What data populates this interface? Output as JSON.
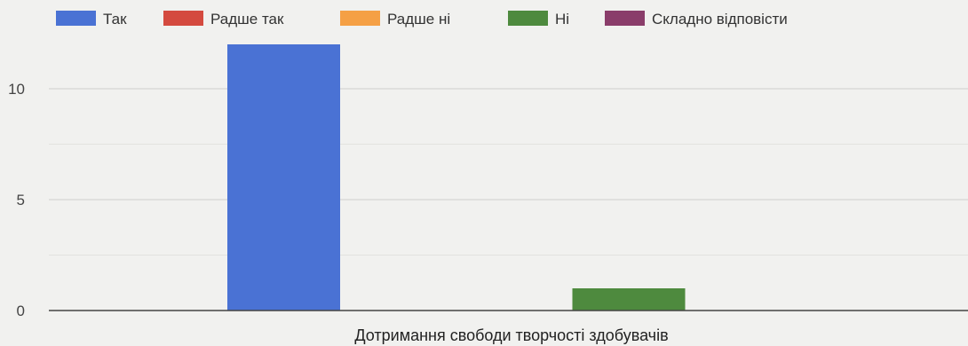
{
  "chart_data": {
    "type": "bar",
    "title": "",
    "xlabel": "",
    "ylabel": "",
    "categories": [
      "Дотримання свободи творчості здобувачів"
    ],
    "series": [
      {
        "name": "Так",
        "values": [
          12
        ],
        "color": "#4a72d4"
      },
      {
        "name": "Радше так",
        "values": [
          0
        ],
        "color": "#d44a3f"
      },
      {
        "name": "Радше ні",
        "values": [
          0
        ],
        "color": "#f5a045"
      },
      {
        "name": "Ні",
        "values": [
          1
        ],
        "color": "#4e8a3e"
      },
      {
        "name": "Складно відповісти",
        "values": [
          0
        ],
        "color": "#8a3d6a"
      }
    ],
    "ylim": [
      0,
      12
    ],
    "yticks": [
      0,
      5,
      10
    ],
    "grid": true,
    "legend_position": "top-left"
  }
}
